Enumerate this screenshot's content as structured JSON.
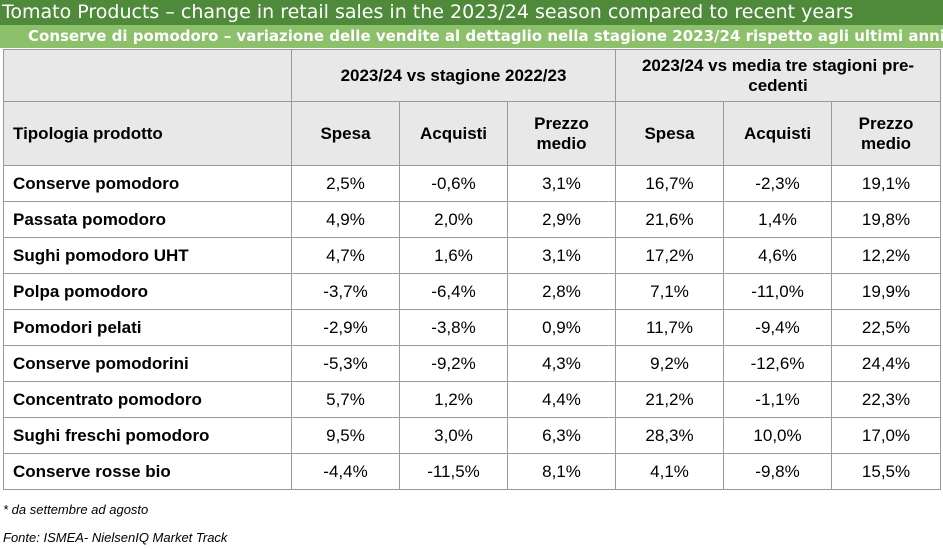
{
  "title": "Tomato Products – change in retail sales in the 2023/24 season compared to recent years",
  "subtitle": "Conserve di pomodoro – variazione delle vendite al dettaglio nella stagione 2023/24 rispetto agli ultimi anni",
  "colors": {
    "title_bg": "#4f8a3a",
    "subtitle_bg": "#8cc06a",
    "header_bg": "#e8e8e8"
  },
  "table": {
    "group_headers": [
      "2023/24 vs stagione 2022/23",
      "2023/24 vs media tre stagioni pre-cedenti"
    ],
    "columns": [
      "Tipologia prodotto",
      "Spesa",
      "Acquisti",
      "Prezzo medio",
      "Spesa",
      "Acquisti",
      "Prezzo medio"
    ],
    "rows": [
      [
        "Conserve pomodoro",
        "2,5%",
        "-0,6%",
        "3,1%",
        "16,7%",
        "-2,3%",
        "19,1%"
      ],
      [
        "Passata pomodoro",
        "4,9%",
        "2,0%",
        "2,9%",
        "21,6%",
        "1,4%",
        "19,8%"
      ],
      [
        "Sughi pomodoro UHT",
        "4,7%",
        "1,6%",
        "3,1%",
        "17,2%",
        "4,6%",
        "12,2%"
      ],
      [
        "Polpa pomodoro",
        "-3,7%",
        "-6,4%",
        "2,8%",
        "7,1%",
        "-11,0%",
        "19,9%"
      ],
      [
        "Pomodori pelati",
        "-2,9%",
        "-3,8%",
        "0,9%",
        "11,7%",
        "-9,4%",
        "22,5%"
      ],
      [
        "Conserve pomodorini",
        "-5,3%",
        "-9,2%",
        "4,3%",
        "9,2%",
        "-12,6%",
        "24,4%"
      ],
      [
        "Concentrato pomodoro",
        "5,7%",
        "1,2%",
        "4,4%",
        "21,2%",
        "-1,1%",
        "22,3%"
      ],
      [
        "Sughi freschi pomodoro",
        "9,5%",
        "3,0%",
        "6,3%",
        "28,3%",
        "10,0%",
        "17,0%"
      ],
      [
        "Conserve rosse bio",
        "-4,4%",
        "-11,5%",
        "8,1%",
        "4,1%",
        "-9,8%",
        "15,5%"
      ]
    ]
  },
  "note": "* da settembre ad agosto",
  "source": "Fonte: ISMEA- NielsenIQ Market Track"
}
